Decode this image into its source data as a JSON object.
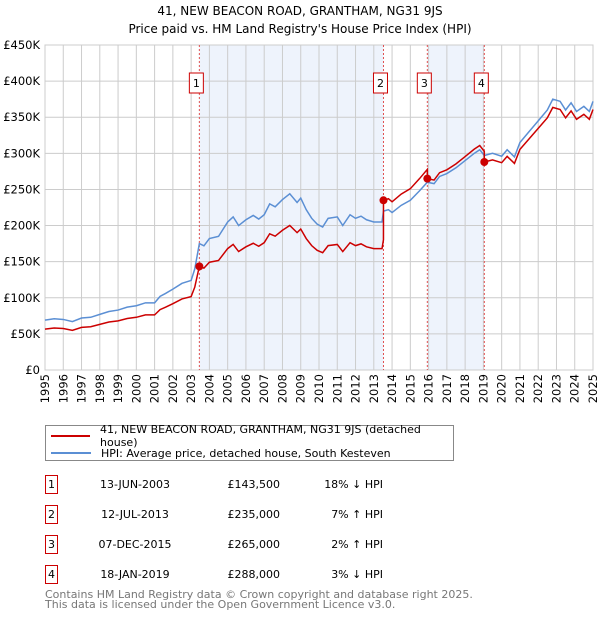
{
  "chart_data": {
    "type": "line",
    "title": "41, NEW BEACON ROAD, GRANTHAM, NG31 9JS",
    "subtitle": "Price paid vs. HM Land Registry's House Price Index (HPI)",
    "xlim": [
      1995,
      2025
    ],
    "ylim": [
      0,
      450000
    ],
    "y_ticks": [
      0,
      50000,
      100000,
      150000,
      200000,
      250000,
      300000,
      350000,
      400000,
      450000
    ],
    "y_tick_labels": [
      "£0",
      "£50K",
      "£100K",
      "£150K",
      "£200K",
      "£250K",
      "£300K",
      "£350K",
      "£400K",
      "£450K"
    ],
    "x_ticks": [
      "1995",
      "1996",
      "1997",
      "1998",
      "1999",
      "2000",
      "2001",
      "2002",
      "2003",
      "2004",
      "2005",
      "2006",
      "2007",
      "2008",
      "2009",
      "2010",
      "2011",
      "2012",
      "2013",
      "2014",
      "2015",
      "2016",
      "2017",
      "2018",
      "2019",
      "2020",
      "2021",
      "2022",
      "2023",
      "2024",
      "2025"
    ],
    "grid": true,
    "colors": {
      "property": "#cc0000",
      "hpi": "#5b8fd4",
      "shade": "#eef3fc",
      "grid": "#cccccc"
    },
    "series": [
      {
        "name": "HPI: Average price, detached house, South Kesteven",
        "x": [
          1995,
          1995.5,
          1996,
          1996.5,
          1997,
          1997.5,
          1998,
          1998.5,
          1999,
          1999.5,
          2000,
          2000.5,
          2001,
          2001.3,
          2001.6,
          2002,
          2002.5,
          2003,
          2003.2,
          2003.45,
          2003.7,
          2004,
          2004.5,
          2005,
          2005.3,
          2005.6,
          2006,
          2006.4,
          2006.7,
          2007,
          2007.3,
          2007.6,
          2008,
          2008.4,
          2008.8,
          2009,
          2009.3,
          2009.6,
          2009.9,
          2010.2,
          2010.5,
          2011,
          2011.3,
          2011.7,
          2012,
          2012.3,
          2012.6,
          2013,
          2013.45,
          2013.53,
          2013.8,
          2014,
          2014.5,
          2015,
          2015.5,
          2015.93,
          2016.3,
          2016.6,
          2017,
          2017.5,
          2018,
          2018.5,
          2018.8,
          2019.05,
          2019.5,
          2020,
          2020.3,
          2020.7,
          2021,
          2021.5,
          2022,
          2022.5,
          2022.8,
          2023.2,
          2023.5,
          2023.8,
          2024.1,
          2024.5,
          2024.8,
          2025
        ],
        "values": [
          69000,
          71000,
          70000,
          67000,
          72000,
          73000,
          77000,
          81000,
          83000,
          87000,
          89000,
          93000,
          93000,
          102000,
          106000,
          112000,
          120000,
          124000,
          140000,
          175000,
          172000,
          182000,
          185000,
          205000,
          212000,
          200000,
          208000,
          214000,
          209000,
          215000,
          230000,
          226000,
          236000,
          244000,
          232000,
          238000,
          222000,
          210000,
          202000,
          198000,
          210000,
          212000,
          200000,
          215000,
          210000,
          213000,
          208000,
          205000,
          205000,
          220000,
          222000,
          218000,
          228000,
          235000,
          248000,
          260000,
          258000,
          268000,
          272000,
          280000,
          290000,
          300000,
          305000,
          297000,
          300000,
          296000,
          305000,
          295000,
          315000,
          330000,
          345000,
          360000,
          375000,
          372000,
          360000,
          370000,
          358000,
          365000,
          358000,
          372000
        ]
      },
      {
        "name": "41, NEW BEACON ROAD, GRANTHAM, NG31 9JS (detached house)",
        "derived_from": "HPI indexed to sale prices"
      }
    ],
    "sales": [
      {
        "n": "1",
        "x": 2003.45,
        "date": "13-JUN-2003",
        "price_value": 143500,
        "price": "£143,500",
        "hpi": "18% ↓ HPI"
      },
      {
        "n": "2",
        "x": 2013.53,
        "date": "12-JUL-2013",
        "price_value": 235000,
        "price": "£235,000",
        "hpi": "7% ↑ HPI"
      },
      {
        "n": "3",
        "x": 2015.93,
        "date": "07-DEC-2015",
        "price_value": 265000,
        "price": "£265,000",
        "hpi": "2% ↑ HPI"
      },
      {
        "n": "4",
        "x": 2019.05,
        "date": "18-JAN-2019",
        "price_value": 288000,
        "price": "£288,000",
        "hpi": "3% ↓ HPI"
      }
    ]
  },
  "legend": {
    "property": "41, NEW BEACON ROAD, GRANTHAM, NG31 9JS (detached house)",
    "hpi": "HPI: Average price, detached house, South Kesteven"
  },
  "footer": {
    "line1": "Contains HM Land Registry data © Crown copyright and database right 2025.",
    "line2": "This data is licensed under the Open Government Licence v3.0."
  }
}
